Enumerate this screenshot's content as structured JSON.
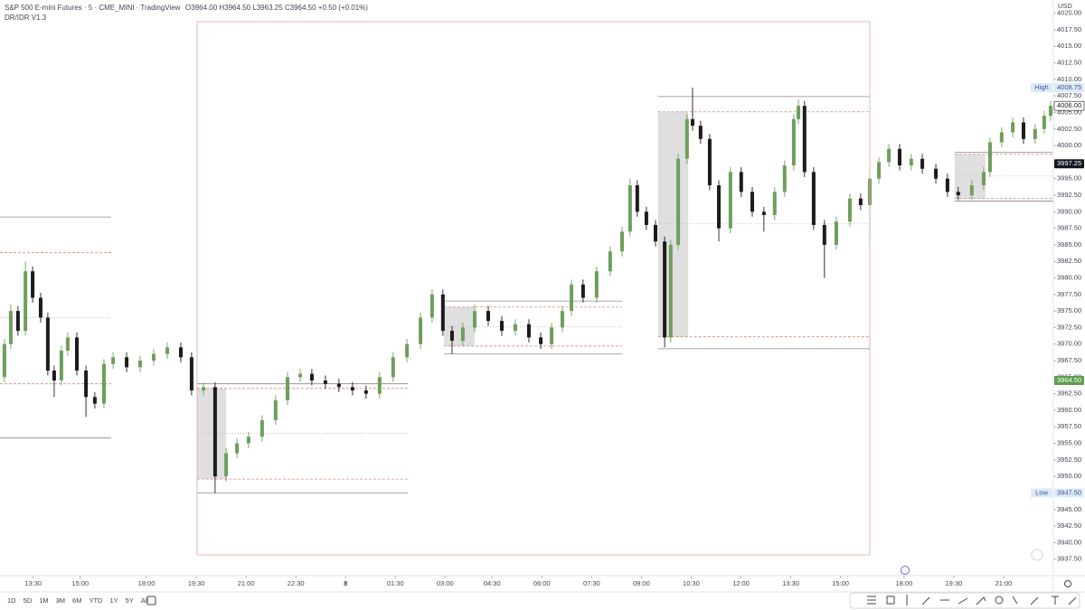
{
  "ui": {
    "title": "S&P 500 E-mini Futures · 5 · CME_MINI · TradingView",
    "ohlc": "O3964.00 H3964.50 L3963.25 C3964.50 +0.50 (+0.01%)",
    "indicator": "DR/IDR V1.3",
    "currency": "USD",
    "timeframes": [
      "1D",
      "5D",
      "1M",
      "3M",
      "6M",
      "YTD",
      "1Y",
      "5Y",
      "All"
    ]
  },
  "chart_data": {
    "type": "candlestick",
    "up_color": "#6f9e5c",
    "down_color": "#1c1c1c",
    "xlim": [
      0,
      381
    ],
    "ylim": [
      3935,
      4022
    ],
    "xticks": [
      {
        "value": 12,
        "label": "13:30"
      },
      {
        "value": 29,
        "label": "15:00"
      },
      {
        "value": 53,
        "label": "18:00"
      },
      {
        "value": 71,
        "label": "19:30"
      },
      {
        "value": 89,
        "label": "21:00"
      },
      {
        "value": 107,
        "label": "22:30"
      },
      {
        "value": 125,
        "label": "8"
      },
      {
        "value": 143,
        "label": "01:30"
      },
      {
        "value": 161,
        "label": "03:00"
      },
      {
        "value": 178,
        "label": "04:30"
      },
      {
        "value": 196,
        "label": "06:00"
      },
      {
        "value": 214,
        "label": "07:30"
      },
      {
        "value": 232,
        "label": "09:00"
      },
      {
        "value": 250,
        "label": "10:30"
      },
      {
        "value": 268,
        "label": "12:00"
      },
      {
        "value": 286,
        "label": "13:30"
      },
      {
        "value": 304,
        "label": "15:00"
      },
      {
        "value": 327,
        "label": "18:00"
      },
      {
        "value": 345,
        "label": "19:30"
      },
      {
        "value": 363,
        "label": "21:00"
      }
    ],
    "yticks": [
      {
        "value": 3937.5,
        "label": "3937.50"
      },
      {
        "value": 3940,
        "label": "3940.00"
      },
      {
        "value": 3942.5,
        "label": "3942.50"
      },
      {
        "value": 3945,
        "label": "3945.00"
      },
      {
        "value": 3947.5,
        "label": "3947.50"
      },
      {
        "value": 3950,
        "label": "3950.00"
      },
      {
        "value": 3952.5,
        "label": "3952.50"
      },
      {
        "value": 3955,
        "label": "3955.00"
      },
      {
        "value": 3957.5,
        "label": "3957.50"
      },
      {
        "value": 3960,
        "label": "3960.00"
      },
      {
        "value": 3962.5,
        "label": "3962.50"
      },
      {
        "value": 3965,
        "label": "3965.00"
      },
      {
        "value": 3967.5,
        "label": "3967.50"
      },
      {
        "value": 3970,
        "label": "3970.00"
      },
      {
        "value": 3972.5,
        "label": "3972.50"
      },
      {
        "value": 3975,
        "label": "3975.00"
      },
      {
        "value": 3977.5,
        "label": "3977.50"
      },
      {
        "value": 3980,
        "label": "3980.00"
      },
      {
        "value": 3982.5,
        "label": "3982.50"
      },
      {
        "value": 3985,
        "label": "3985.00"
      },
      {
        "value": 3987.5,
        "label": "3987.50"
      },
      {
        "value": 3990,
        "label": "3990.00"
      },
      {
        "value": 3992.5,
        "label": "3992.50"
      },
      {
        "value": 3995,
        "label": "3995.00"
      },
      {
        "value": 3997.5,
        "label": "3997.50"
      },
      {
        "value": 4000,
        "label": "4000.00"
      },
      {
        "value": 4002.5,
        "label": "4002.50"
      },
      {
        "value": 4005,
        "label": "4005.00"
      },
      {
        "value": 4007.5,
        "label": "4007.50"
      },
      {
        "value": 4010,
        "label": "4010.00"
      },
      {
        "value": 4012.5,
        "label": "4012.50"
      },
      {
        "value": 4015,
        "label": "4015.00"
      },
      {
        "value": 4017.5,
        "label": "4017.50"
      },
      {
        "value": 4020,
        "label": "4020.00"
      }
    ],
    "markers": [
      {
        "name": "High",
        "value": 4008.75,
        "label": "4008.75",
        "color": "#dde9f8",
        "text_color": "#3a5a8c"
      },
      {
        "value": 4006,
        "label": "4006.00",
        "color": "#ffffff",
        "text_color": "#131722"
      },
      {
        "value": 3997.25,
        "label": "3997.25",
        "color": "#131722",
        "text_color": "#ffffff"
      },
      {
        "value": 3964.5,
        "label": "3964.50",
        "color": "#5f9e4e",
        "text_color": "#ffffff"
      },
      {
        "name": "Low",
        "value": 3947.5,
        "label": "3947.50",
        "color": "#dde9f8",
        "text_color": "#3a5a8c"
      }
    ],
    "ranges": [
      {
        "start": 0,
        "end": 40.2,
        "dr_high": 3989.2,
        "dr_low": 3955.8,
        "idr_high": 3983.8,
        "idr_low": 3964,
        "mid": 3974
      },
      {
        "start": 71.3,
        "box_end": 81.8,
        "end": 147.5,
        "dr_high": 3964,
        "dr_low": 3947.5,
        "idr_high": 3963.3,
        "idr_low": 3949.6,
        "mid": 3956.5
      },
      {
        "start": 160.6,
        "box_end": 171.7,
        "end": 225,
        "dr_high": 3976.5,
        "dr_low": 3968.5,
        "idr_high": 3975.6,
        "idr_low": 3969.7,
        "mid": 3972.6
      },
      {
        "start": 238,
        "box_end": 248.9,
        "end": 314.6,
        "dr_high": 4007.4,
        "dr_low": 3969.3,
        "idr_high": 4005.1,
        "idr_low": 3971.1,
        "mid": 3988.2
      },
      {
        "start": 345.3,
        "box_end": 356.4,
        "end": 381,
        "dr_high": 3999,
        "dr_low": 3991.6,
        "idr_high": 3998.7,
        "idr_low": 3992,
        "mid": 3995.4
      }
    ],
    "candles": [
      {
        "x": 1.6,
        "open": 3965,
        "high": 3970.75,
        "low": 3964.25,
        "close": 3970
      },
      {
        "x": 3.9,
        "open": 3970,
        "high": 3976,
        "low": 3969.25,
        "close": 3975
      },
      {
        "x": 6.5,
        "open": 3975,
        "high": 3975.75,
        "low": 3971.25,
        "close": 3972
      },
      {
        "x": 9.2,
        "open": 3972,
        "high": 3982.5,
        "low": 3971.25,
        "close": 3981
      },
      {
        "x": 11.8,
        "open": 3981,
        "high": 3981.75,
        "low": 3976.25,
        "close": 3977
      },
      {
        "x": 14.7,
        "open": 3977,
        "high": 3977.75,
        "low": 3973.25,
        "close": 3974
      },
      {
        "x": 17.3,
        "open": 3974,
        "high": 3974.75,
        "low": 3965.25,
        "close": 3966
      },
      {
        "x": 19.6,
        "open": 3966,
        "high": 3966.75,
        "low": 3962,
        "close": 3964.5
      },
      {
        "x": 22.2,
        "open": 3964.5,
        "high": 3969.75,
        "low": 3963.75,
        "close": 3969
      },
      {
        "x": 24.5,
        "open": 3969,
        "high": 3971.75,
        "low": 3968.25,
        "close": 3971
      },
      {
        "x": 27.8,
        "open": 3971,
        "high": 3971.75,
        "low": 3965.25,
        "close": 3966
      },
      {
        "x": 31.1,
        "open": 3966,
        "high": 3966.75,
        "low": 3959,
        "close": 3962
      },
      {
        "x": 34.3,
        "open": 3962,
        "high": 3962.75,
        "low": 3960.25,
        "close": 3961
      },
      {
        "x": 37.6,
        "open": 3961,
        "high": 3967.75,
        "low": 3960.25,
        "close": 3967
      },
      {
        "x": 40.9,
        "open": 3967,
        "high": 3968.75,
        "low": 3966.25,
        "close": 3968
      },
      {
        "x": 45.8,
        "open": 3968,
        "high": 3968.75,
        "low": 3965.75,
        "close": 3966.5
      },
      {
        "x": 50.7,
        "open": 3966.5,
        "high": 3968.25,
        "low": 3965.75,
        "close": 3967.5
      },
      {
        "x": 55.6,
        "open": 3967.5,
        "high": 3969.25,
        "low": 3966.75,
        "close": 3968.5
      },
      {
        "x": 60.5,
        "open": 3968.5,
        "high": 3970.25,
        "low": 3967.75,
        "close": 3969.5
      },
      {
        "x": 65.4,
        "open": 3969.5,
        "high": 3970.25,
        "low": 3967.25,
        "close": 3968
      },
      {
        "x": 69.3,
        "open": 3968,
        "high": 3968.75,
        "low": 3962.25,
        "close": 3963
      },
      {
        "x": 73.6,
        "open": 3963,
        "high": 3964.25,
        "low": 3962.25,
        "close": 3963.5
      },
      {
        "x": 77.8,
        "open": 3963.5,
        "high": 3964.25,
        "low": 3947.5,
        "close": 3950
      },
      {
        "x": 81.8,
        "open": 3950,
        "high": 3954.25,
        "low": 3949.25,
        "close": 3953.5
      },
      {
        "x": 85.7,
        "open": 3953.5,
        "high": 3955.75,
        "low": 3952.75,
        "close": 3955
      },
      {
        "x": 89.9,
        "open": 3955,
        "high": 3956.75,
        "low": 3954.25,
        "close": 3956
      },
      {
        "x": 94.8,
        "open": 3956,
        "high": 3959.25,
        "low": 3955.25,
        "close": 3958.5
      },
      {
        "x": 99.7,
        "open": 3958.5,
        "high": 3962.25,
        "low": 3957.75,
        "close": 3961.5
      },
      {
        "x": 104,
        "open": 3961.5,
        "high": 3965.75,
        "low": 3960.75,
        "close": 3965
      },
      {
        "x": 108.6,
        "open": 3965,
        "high": 3966.25,
        "low": 3964.25,
        "close": 3965.5
      },
      {
        "x": 112.8,
        "open": 3965.5,
        "high": 3966.25,
        "low": 3963.75,
        "close": 3964.5
      },
      {
        "x": 117.7,
        "open": 3964.5,
        "high": 3965.25,
        "low": 3963.25,
        "close": 3964
      },
      {
        "x": 122.6,
        "open": 3964,
        "high": 3964.75,
        "low": 3962.75,
        "close": 3963.5
      },
      {
        "x": 127.5,
        "open": 3963.5,
        "high": 3964.25,
        "low": 3962.25,
        "close": 3963
      },
      {
        "x": 132.4,
        "open": 3963,
        "high": 3963.75,
        "low": 3961.75,
        "close": 3962.5
      },
      {
        "x": 137.3,
        "open": 3962.5,
        "high": 3965.75,
        "low": 3961.75,
        "close": 3965
      },
      {
        "x": 142.2,
        "open": 3965,
        "high": 3968.75,
        "low": 3964.25,
        "close": 3968
      },
      {
        "x": 147.2,
        "open": 3968,
        "high": 3970.75,
        "low": 3967.25,
        "close": 3970
      },
      {
        "x": 152.1,
        "open": 3970,
        "high": 3974.75,
        "low": 3969.25,
        "close": 3974
      },
      {
        "x": 156.3,
        "open": 3974,
        "high": 3978.25,
        "low": 3973.25,
        "close": 3977.5
      },
      {
        "x": 160.2,
        "open": 3977.5,
        "high": 3978.25,
        "low": 3971.25,
        "close": 3972
      },
      {
        "x": 163.5,
        "open": 3972,
        "high": 3972.75,
        "low": 3968.5,
        "close": 3970.5
      },
      {
        "x": 167.4,
        "open": 3970.5,
        "high": 3973.25,
        "low": 3969.75,
        "close": 3972.5
      },
      {
        "x": 171.7,
        "open": 3972.5,
        "high": 3976,
        "low": 3971.75,
        "close": 3975
      },
      {
        "x": 176.6,
        "open": 3975,
        "high": 3975.75,
        "low": 3972.75,
        "close": 3973.5
      },
      {
        "x": 181.5,
        "open": 3973.5,
        "high": 3974.25,
        "low": 3971.25,
        "close": 3972
      },
      {
        "x": 186.4,
        "open": 3972,
        "high": 3973.75,
        "low": 3971.25,
        "close": 3973
      },
      {
        "x": 191.3,
        "open": 3973,
        "high": 3973.75,
        "low": 3970.25,
        "close": 3971
      },
      {
        "x": 195.6,
        "open": 3971,
        "high": 3971.75,
        "low": 3969.25,
        "close": 3970
      },
      {
        "x": 199.5,
        "open": 3970,
        "high": 3973.25,
        "low": 3969.25,
        "close": 3972.5
      },
      {
        "x": 203.4,
        "open": 3972.5,
        "high": 3975.75,
        "low": 3971.75,
        "close": 3975
      },
      {
        "x": 206.7,
        "open": 3975,
        "high": 3979.75,
        "low": 3974.25,
        "close": 3979
      },
      {
        "x": 210.9,
        "open": 3979,
        "high": 3979.75,
        "low": 3976.25,
        "close": 3977
      },
      {
        "x": 215.8,
        "open": 3977,
        "high": 3981.75,
        "low": 3976.25,
        "close": 3981
      },
      {
        "x": 220.7,
        "open": 3981,
        "high": 3984.75,
        "low": 3980.25,
        "close": 3984
      },
      {
        "x": 225,
        "open": 3984,
        "high": 3987.75,
        "low": 3983.25,
        "close": 3987
      },
      {
        "x": 227.9,
        "open": 3987,
        "high": 3995,
        "low": 3986.25,
        "close": 3994
      },
      {
        "x": 230.5,
        "open": 3994,
        "high": 3994.75,
        "low": 3989.25,
        "close": 3990
      },
      {
        "x": 233.8,
        "open": 3990,
        "high": 3990.75,
        "low": 3987.25,
        "close": 3988
      },
      {
        "x": 237.1,
        "open": 3988,
        "high": 3988.75,
        "low": 3984.75,
        "close": 3985.5
      },
      {
        "x": 240.4,
        "open": 3985.5,
        "high": 3986.25,
        "low": 3969.5,
        "close": 3971
      },
      {
        "x": 242.6,
        "open": 3971,
        "high": 3985.75,
        "low": 3970.25,
        "close": 3985
      },
      {
        "x": 245.3,
        "open": 3985,
        "high": 3998.75,
        "low": 3984.25,
        "close": 3998
      },
      {
        "x": 248.5,
        "open": 3998,
        "high": 4004.75,
        "low": 3997.25,
        "close": 4004
      },
      {
        "x": 250.5,
        "open": 4004,
        "high": 4008.75,
        "low": 4002.25,
        "close": 4003
      },
      {
        "x": 253.4,
        "open": 4003,
        "high": 4003.75,
        "low": 4000.25,
        "close": 4001
      },
      {
        "x": 256.7,
        "open": 4001,
        "high": 4001.75,
        "low": 3993.25,
        "close": 3994
      },
      {
        "x": 260,
        "open": 3994,
        "high": 3994.75,
        "low": 3985.5,
        "close": 3987.5
      },
      {
        "x": 264.2,
        "open": 3987.5,
        "high": 3996.75,
        "low": 3986.75,
        "close": 3996
      },
      {
        "x": 268.1,
        "open": 3996,
        "high": 3996.75,
        "low": 3992.25,
        "close": 3993
      },
      {
        "x": 272.1,
        "open": 3993,
        "high": 3993.75,
        "low": 3989.25,
        "close": 3990
      },
      {
        "x": 276.3,
        "open": 3990,
        "high": 3990.75,
        "low": 3987,
        "close": 3989.5
      },
      {
        "x": 280.2,
        "open": 3989.5,
        "high": 3993.75,
        "low": 3988.75,
        "close": 3993
      },
      {
        "x": 283.8,
        "open": 3993,
        "high": 3997.75,
        "low": 3992.25,
        "close": 3997
      },
      {
        "x": 287.1,
        "open": 3997,
        "high": 4004.75,
        "low": 3996.25,
        "close": 4004
      },
      {
        "x": 288.8,
        "open": 4004,
        "high": 4007,
        "low": 4003.25,
        "close": 4006
      },
      {
        "x": 291,
        "open": 4006,
        "high": 4006.75,
        "low": 3995.25,
        "close": 3996
      },
      {
        "x": 294.3,
        "open": 3996,
        "high": 3996.75,
        "low": 3987.25,
        "close": 3988
      },
      {
        "x": 298.2,
        "open": 3988,
        "high": 3988.75,
        "low": 3980,
        "close": 3985
      },
      {
        "x": 302.5,
        "open": 3985,
        "high": 3989.25,
        "low": 3984.25,
        "close": 3988.5
      },
      {
        "x": 307.4,
        "open": 3988.5,
        "high": 3992.75,
        "low": 3987.75,
        "close": 3992
      },
      {
        "x": 311.3,
        "open": 3992,
        "high": 3992.75,
        "low": 3990.25,
        "close": 3991
      },
      {
        "x": 314.6,
        "open": 3991,
        "high": 3995.75,
        "low": 3985.5,
        "close": 3995
      },
      {
        "x": 317.9,
        "open": 3995,
        "high": 3998.25,
        "low": 3994.25,
        "close": 3997.5
      },
      {
        "x": 321.5,
        "open": 3997.5,
        "high": 4000.25,
        "low": 3996.75,
        "close": 3999.5
      },
      {
        "x": 325.4,
        "open": 3999.5,
        "high": 4000.25,
        "low": 3996.25,
        "close": 3997
      },
      {
        "x": 329.6,
        "open": 3997,
        "high": 3998.75,
        "low": 3996.25,
        "close": 3998
      },
      {
        "x": 333.6,
        "open": 3998,
        "high": 3998.75,
        "low": 3995.75,
        "close": 3996.5
      },
      {
        "x": 338.5,
        "open": 3996.5,
        "high": 3997.25,
        "low": 3994.25,
        "close": 3995
      },
      {
        "x": 342.7,
        "open": 3995,
        "high": 3995.75,
        "low": 3992.25,
        "close": 3993
      },
      {
        "x": 346.6,
        "open": 3993,
        "high": 3993.75,
        "low": 3991.75,
        "close": 3992.5
      },
      {
        "x": 351.5,
        "open": 3992.5,
        "high": 3994.75,
        "low": 3991.75,
        "close": 3994
      },
      {
        "x": 355.8,
        "open": 3994,
        "high": 3996.75,
        "low": 3993.25,
        "close": 3996
      },
      {
        "x": 358.1,
        "open": 3996,
        "high": 4001.25,
        "low": 3995.25,
        "close": 4000.5
      },
      {
        "x": 362.3,
        "open": 4000.5,
        "high": 4002.75,
        "low": 3999.75,
        "close": 4002
      },
      {
        "x": 366.3,
        "open": 4002,
        "high": 4004.25,
        "low": 4001.25,
        "close": 4003.5
      },
      {
        "x": 370.2,
        "open": 4003.5,
        "high": 4004.25,
        "low": 4000.25,
        "close": 4001
      },
      {
        "x": 374.4,
        "open": 4001,
        "high": 4003.25,
        "low": 4000.25,
        "close": 4002.5
      },
      {
        "x": 377.7,
        "open": 4002.5,
        "high": 4005.25,
        "low": 4001.75,
        "close": 4004.5
      },
      {
        "x": 380,
        "open": 4004.5,
        "high": 4006.75,
        "low": 4003.75,
        "close": 4006
      }
    ]
  }
}
